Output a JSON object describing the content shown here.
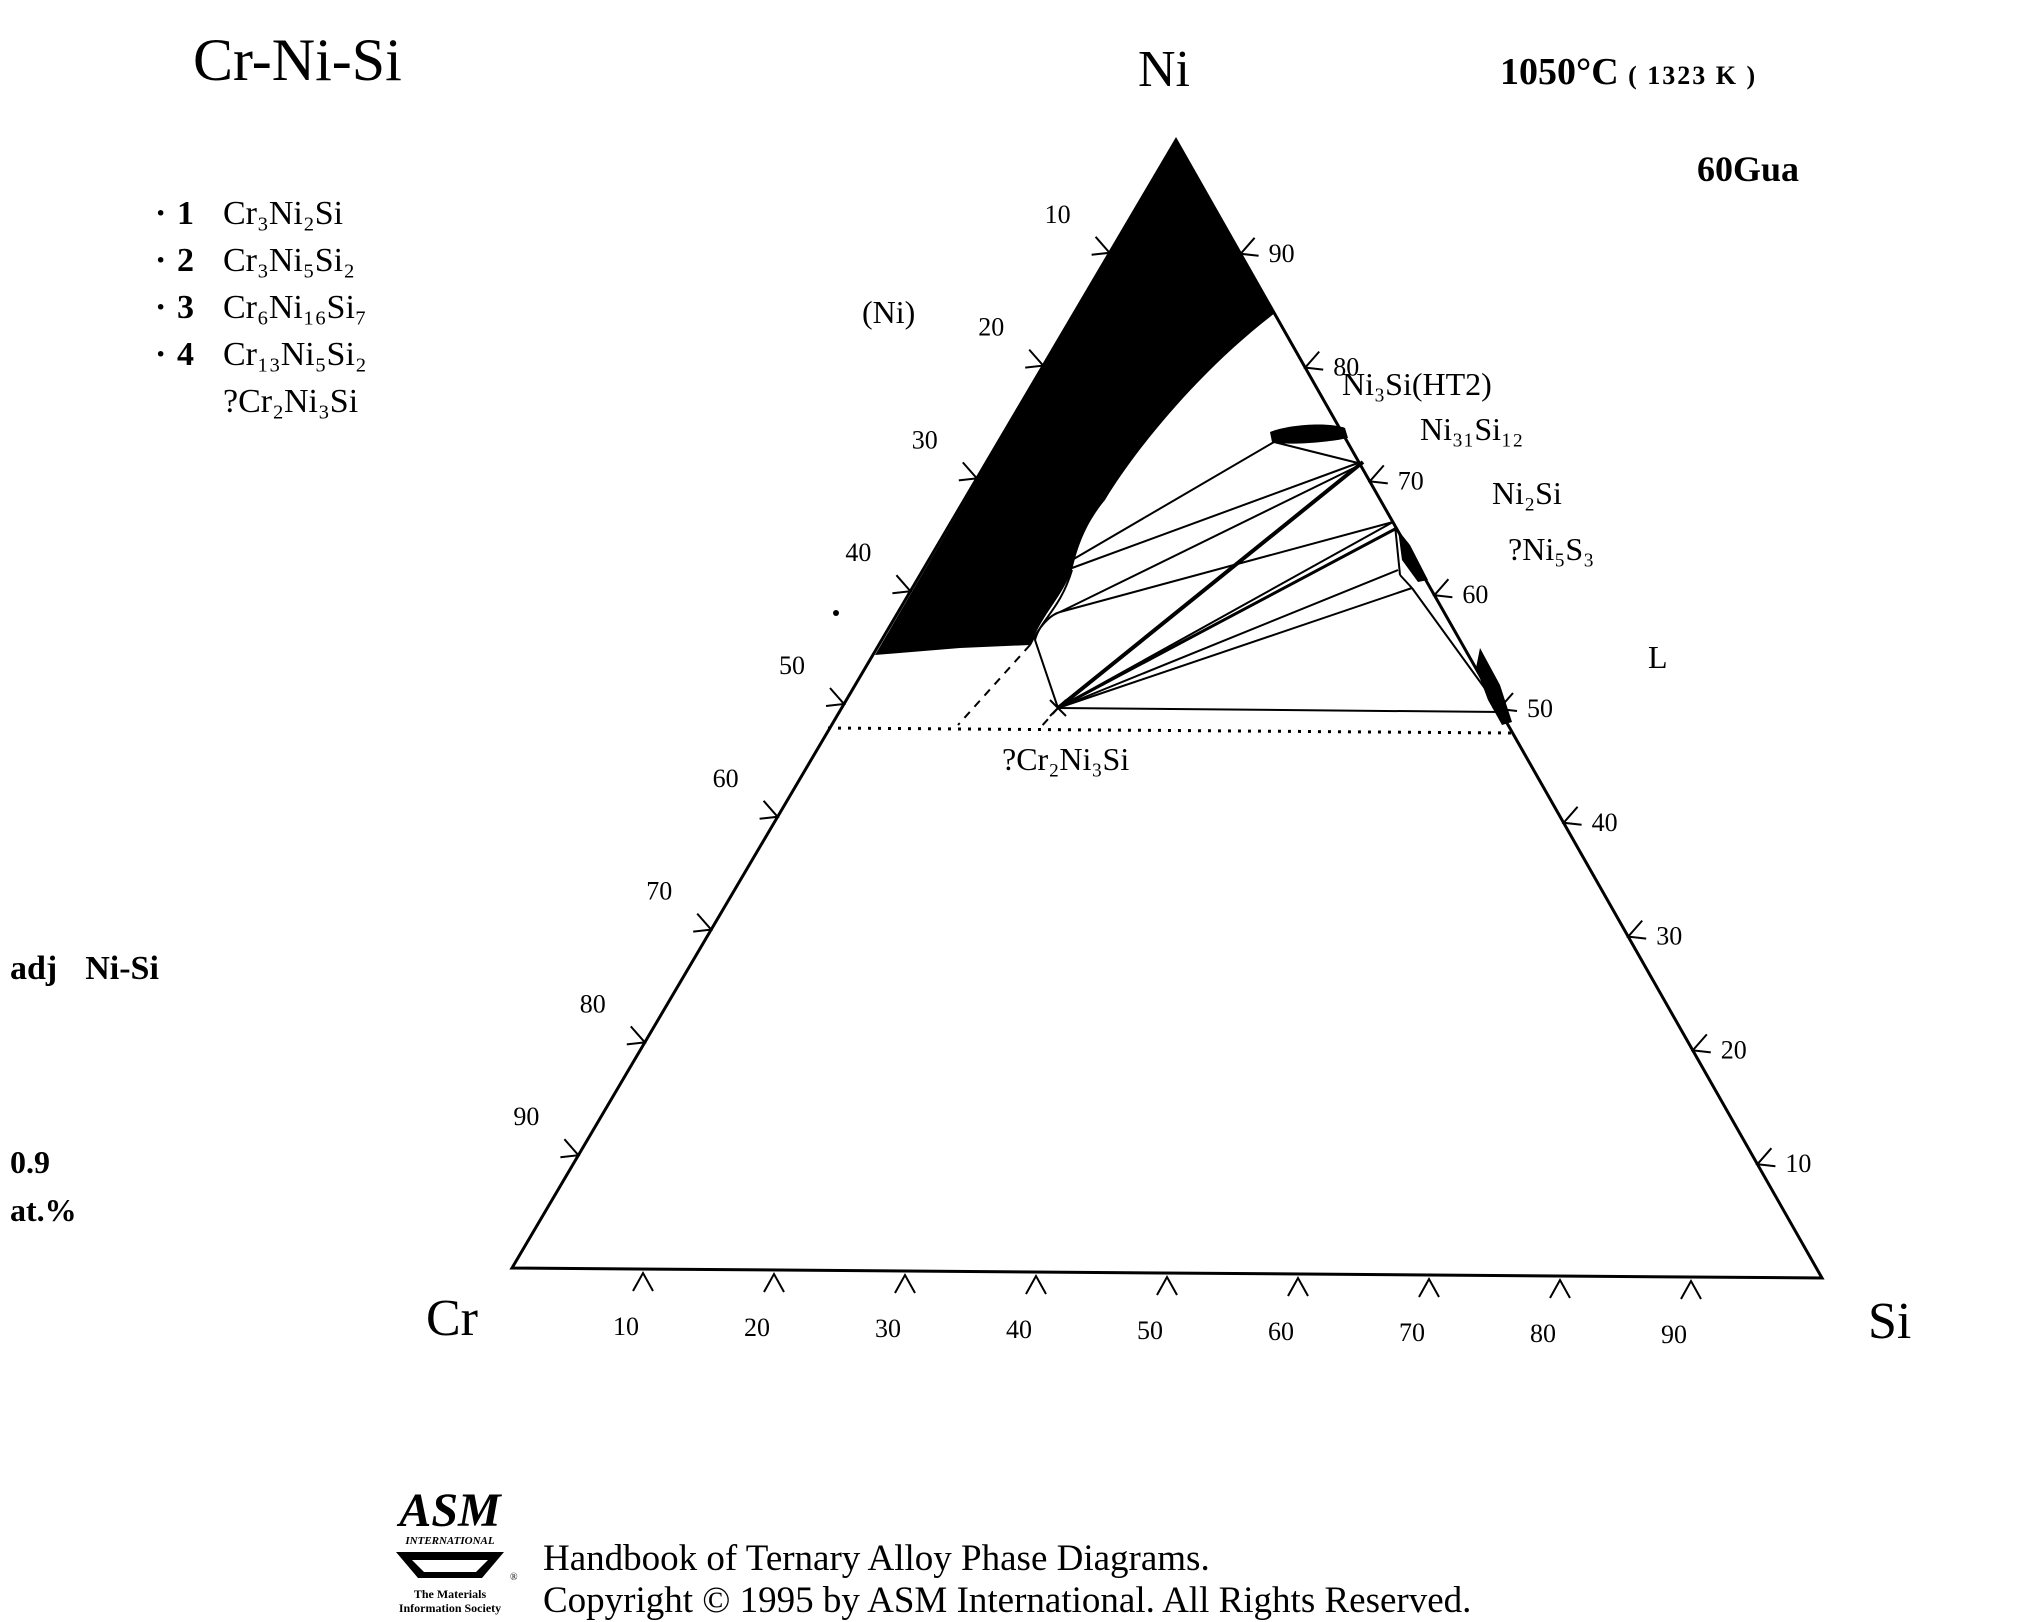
{
  "header": {
    "system": "Cr-Ni-Si",
    "temperature": "1050°C",
    "temperature_k": "( 1323 K )",
    "reference": "60Gua"
  },
  "legend": {
    "items": [
      {
        "num": "1",
        "formula": "Cr₃Ni₂Si"
      },
      {
        "num": "2",
        "formula": "Cr₃Ni₅Si₂"
      },
      {
        "num": "3",
        "formula": "Cr₆Ni₁₆Si₇"
      },
      {
        "num": "4",
        "formula": "Cr₁₃Ni₅Si₂"
      }
    ],
    "questionable": "?Cr₂Ni₃Si"
  },
  "adjacent": {
    "label": "adj",
    "system": "Ni-Si"
  },
  "scale": {
    "value": "0.9",
    "unit": "at.%"
  },
  "vertices": {
    "top": "Ni",
    "left": "Cr",
    "right": "Si"
  },
  "ticks": {
    "left_edge": [
      "10",
      "20",
      "30",
      "40",
      "50",
      "60",
      "70",
      "80",
      "90"
    ],
    "right_edge": [
      "90",
      "80",
      "70",
      "60",
      "50",
      "40",
      "30",
      "20",
      "10"
    ],
    "bottom_edge": [
      "10",
      "20",
      "30",
      "40",
      "50",
      "60",
      "70",
      "80",
      "90"
    ]
  },
  "phase_labels": {
    "ni": "(Ni)",
    "ni3si": "Ni₃Si(HT2)",
    "ni31si12": "Ni₃₁Si₁₂",
    "ni2si": "Ni₂Si",
    "ni5s3": "?Ni₅S₃",
    "liquid": "L",
    "cr2ni3si": "?Cr₂Ni₃Si"
  },
  "footer": {
    "logo_text": "ASM",
    "logo_sub1": "INTERNATIONAL",
    "logo_sub2": "The Materials",
    "logo_sub3": "Information Society",
    "line1": "Handbook of Ternary Alloy Phase Diagrams.",
    "line2": "Copyright © 1995 by ASM International. All Rights Reserved."
  }
}
